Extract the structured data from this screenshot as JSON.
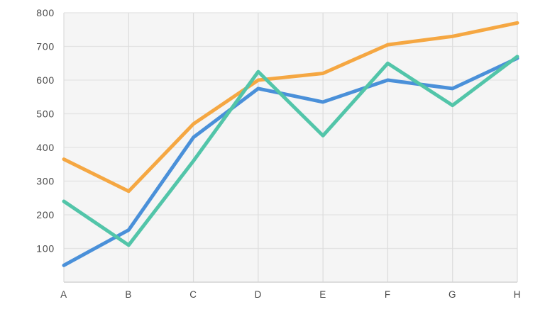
{
  "chart_data": {
    "type": "line",
    "categories": [
      "A",
      "B",
      "C",
      "D",
      "E",
      "F",
      "G",
      "H"
    ],
    "series": [
      {
        "name": "orange",
        "color": "#f5a742",
        "values": [
          365,
          270,
          470,
          600,
          620,
          705,
          730,
          770
        ]
      },
      {
        "name": "blue",
        "color": "#4a90d9",
        "values": [
          50,
          155,
          430,
          575,
          535,
          600,
          575,
          665
        ]
      },
      {
        "name": "teal",
        "color": "#52c5a9",
        "values": [
          240,
          110,
          360,
          625,
          435,
          650,
          525,
          670
        ]
      }
    ],
    "title": "",
    "xlabel": "",
    "ylabel": "",
    "ylim": [
      0,
      800
    ],
    "yticks": [
      100,
      200,
      300,
      400,
      500,
      600,
      700,
      800
    ],
    "grid": true,
    "legend_position": "none",
    "colors": {
      "panel_bg": "#f5f5f5",
      "grid_horizontal": "#e3e3e3",
      "grid_vertical": "#dcdcdc",
      "axis_line": "#d4d4d4",
      "tick_label": "#4a4a4a",
      "page_bg": "#ffffff"
    }
  }
}
